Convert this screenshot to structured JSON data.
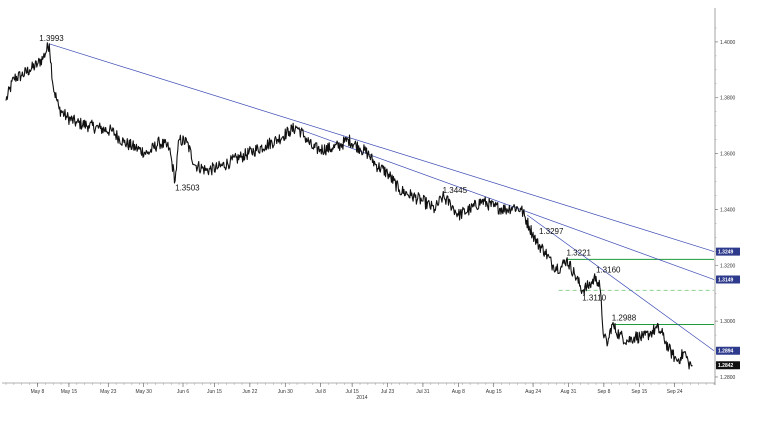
{
  "chart_data": {
    "type": "line",
    "title": "",
    "xlabel": "",
    "ylabel": "",
    "year_label": "2014",
    "ylim": [
      1.2782,
      1.4082
    ],
    "yticks": [
      "1.4000",
      "1.3800",
      "1.3600",
      "1.3400",
      "1.3200",
      "1.3000",
      "1.2800"
    ],
    "xticks": [
      "May 8",
      "May 15",
      "May 23",
      "May 30",
      "Jun 6",
      "Jun 15",
      "Jun 22",
      "Jun 30",
      "Jul 8",
      "Jul 15",
      "Jul 23",
      "Jul 31",
      "Aug 8",
      "Aug 15",
      "Aug 24",
      "Aug 31",
      "Sep 8",
      "Sep 15",
      "Sep 24"
    ],
    "annotations": [
      {
        "label": "1.3993",
        "value": 1.3993,
        "bar": 22
      },
      {
        "label": "1.3503",
        "value": 1.3503,
        "bar": 86
      },
      {
        "label": "1.3445",
        "value": 1.3445,
        "bar": 222
      },
      {
        "label": "1.3297",
        "value": 1.3297,
        "bar": 271
      },
      {
        "label": "1.3221",
        "value": 1.3221,
        "bar": 285
      },
      {
        "label": "1.3160",
        "value": 1.316,
        "bar": 300
      },
      {
        "label": "1.3110",
        "value": 1.311,
        "bar": 293
      },
      {
        "label": "1.2988",
        "value": 1.2988,
        "bar": 308
      }
    ],
    "price_tags": [
      {
        "label": "1.3249",
        "value": 1.3249,
        "color": "#2e3b8c"
      },
      {
        "label": "1.3149",
        "value": 1.3149,
        "color": "#2e3b8c"
      },
      {
        "label": "1.2894",
        "value": 1.2894,
        "color": "#2e3b8c"
      },
      {
        "label": "1.2842",
        "value": 1.2842,
        "color": "#111111"
      }
    ],
    "trendlines": [
      {
        "from": [
          22,
          1.3993
        ],
        "to": [
          360,
          1.3249
        ]
      },
      {
        "from": [
          148,
          1.369
        ],
        "to": [
          360,
          1.3149
        ]
      },
      {
        "from": [
          265,
          1.338
        ],
        "to": [
          360,
          1.2894
        ]
      }
    ],
    "horizontal_levels": [
      {
        "value": 1.3221,
        "from_bar": 285,
        "style": "solid",
        "color": "#1f9a3a"
      },
      {
        "value": 1.311,
        "from_bar": 281,
        "style": "dashed",
        "color": "#8fd18f"
      },
      {
        "value": 1.2988,
        "from_bar": 308,
        "style": "solid",
        "color": "#1f9a3a"
      }
    ],
    "series": [
      {
        "anchors": [
          [
            0,
            1.379
          ],
          [
            4,
            1.387
          ],
          [
            8,
            1.388
          ],
          [
            12,
            1.39
          ],
          [
            16,
            1.392
          ],
          [
            19,
            1.3945
          ],
          [
            22,
            1.3993
          ],
          [
            24,
            1.384
          ],
          [
            27,
            1.376
          ],
          [
            31,
            1.373
          ],
          [
            36,
            1.371
          ],
          [
            42,
            1.37
          ],
          [
            48,
            1.369
          ],
          [
            54,
            1.368
          ],
          [
            60,
            1.364
          ],
          [
            66,
            1.362
          ],
          [
            72,
            1.36
          ],
          [
            78,
            1.364
          ],
          [
            83,
            1.362
          ],
          [
            86,
            1.3503
          ],
          [
            88,
            1.365
          ],
          [
            92,
            1.364
          ],
          [
            96,
            1.356
          ],
          [
            102,
            1.354
          ],
          [
            108,
            1.355
          ],
          [
            114,
            1.357
          ],
          [
            120,
            1.359
          ],
          [
            126,
            1.361
          ],
          [
            132,
            1.363
          ],
          [
            138,
            1.365
          ],
          [
            144,
            1.368
          ],
          [
            148,
            1.3695
          ],
          [
            152,
            1.366
          ],
          [
            156,
            1.362
          ],
          [
            160,
            1.3615
          ],
          [
            166,
            1.362
          ],
          [
            170,
            1.363
          ],
          [
            174,
            1.365
          ],
          [
            180,
            1.362
          ],
          [
            184,
            1.36
          ],
          [
            188,
            1.356
          ],
          [
            194,
            1.353
          ],
          [
            200,
            1.347
          ],
          [
            206,
            1.345
          ],
          [
            212,
            1.343
          ],
          [
            218,
            1.34
          ],
          [
            222,
            1.3445
          ],
          [
            226,
            1.342
          ],
          [
            230,
            1.338
          ],
          [
            236,
            1.34
          ],
          [
            242,
            1.343
          ],
          [
            248,
            1.341
          ],
          [
            254,
            1.34
          ],
          [
            258,
            1.341
          ],
          [
            262,
            1.34
          ],
          [
            266,
            1.334
          ],
          [
            270,
            1.328
          ],
          [
            274,
            1.325
          ],
          [
            278,
            1.32
          ],
          [
            282,
            1.319
          ],
          [
            285,
            1.3221
          ],
          [
            289,
            1.317
          ],
          [
            293,
            1.311
          ],
          [
            297,
            1.313
          ],
          [
            300,
            1.316
          ],
          [
            302,
            1.312
          ],
          [
            304,
            1.294
          ],
          [
            306,
            1.292
          ],
          [
            308,
            1.2988
          ],
          [
            312,
            1.295
          ],
          [
            316,
            1.293
          ],
          [
            320,
            1.2945
          ],
          [
            324,
            1.294
          ],
          [
            328,
            1.296
          ],
          [
            331,
            1.2975
          ],
          [
            334,
            1.295
          ],
          [
            337,
            1.29
          ],
          [
            339,
            1.288
          ],
          [
            341,
            1.286
          ],
          [
            343,
            1.287
          ],
          [
            345,
            1.289
          ],
          [
            347,
            1.285
          ],
          [
            349,
            1.2842
          ]
        ]
      }
    ],
    "n_bars": 360,
    "tick_bars": [
      16,
      32,
      52,
      70,
      90,
      106,
      124,
      142,
      160,
      176,
      194,
      212,
      230,
      248,
      268,
      286,
      304,
      322,
      340
    ]
  }
}
